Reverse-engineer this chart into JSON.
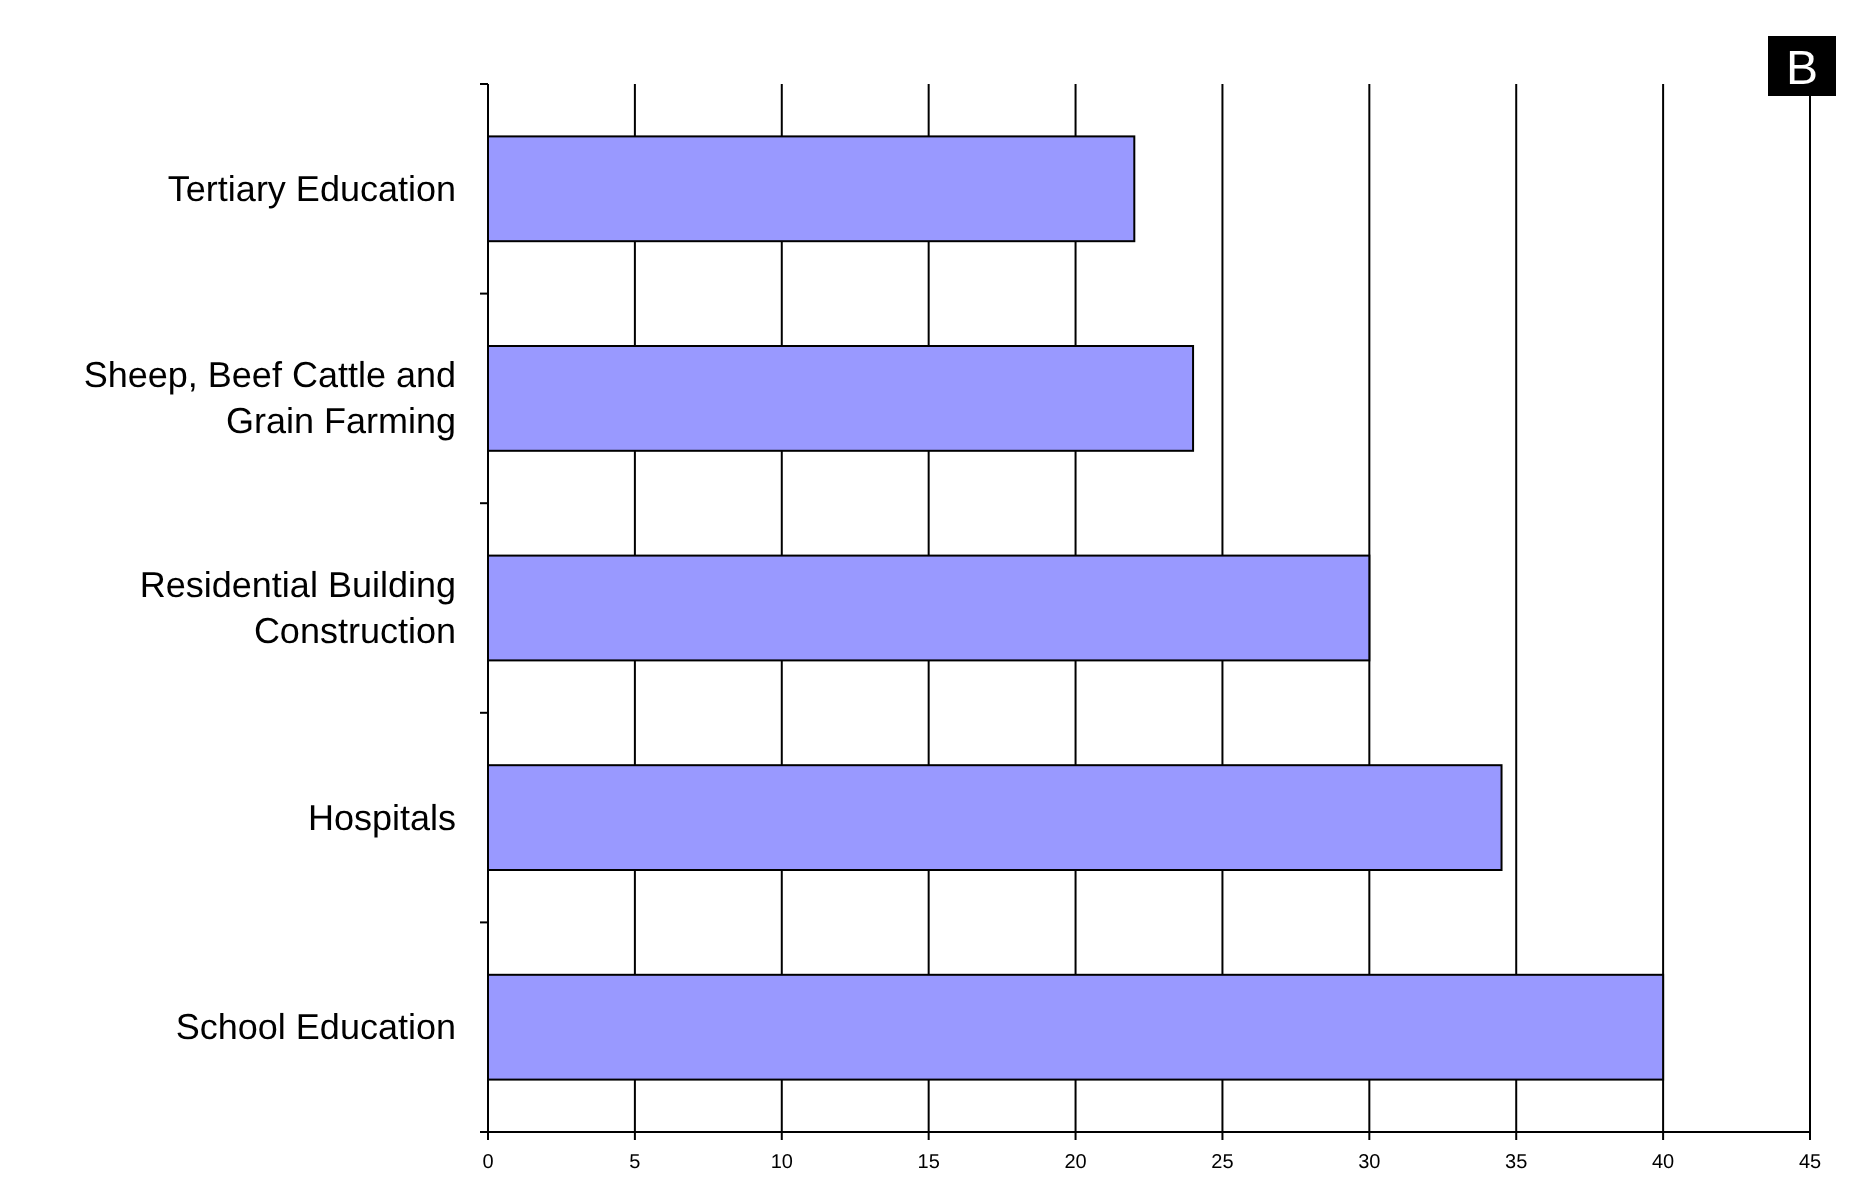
{
  "chart_data": {
    "type": "bar",
    "orientation": "horizontal",
    "categories": [
      "Tertiary Education",
      "Sheep, Beef Cattle and Grain Farming",
      "Residential Building Construction",
      "Hospitals",
      "School Education"
    ],
    "values": [
      22,
      24,
      30,
      34.5,
      40
    ],
    "color": "#9999ff",
    "xlim": [
      0,
      45
    ],
    "xticks": [
      0,
      5,
      10,
      15,
      20,
      25,
      30,
      35,
      40,
      45
    ],
    "grid": "x",
    "annotations": [
      "B"
    ]
  }
}
